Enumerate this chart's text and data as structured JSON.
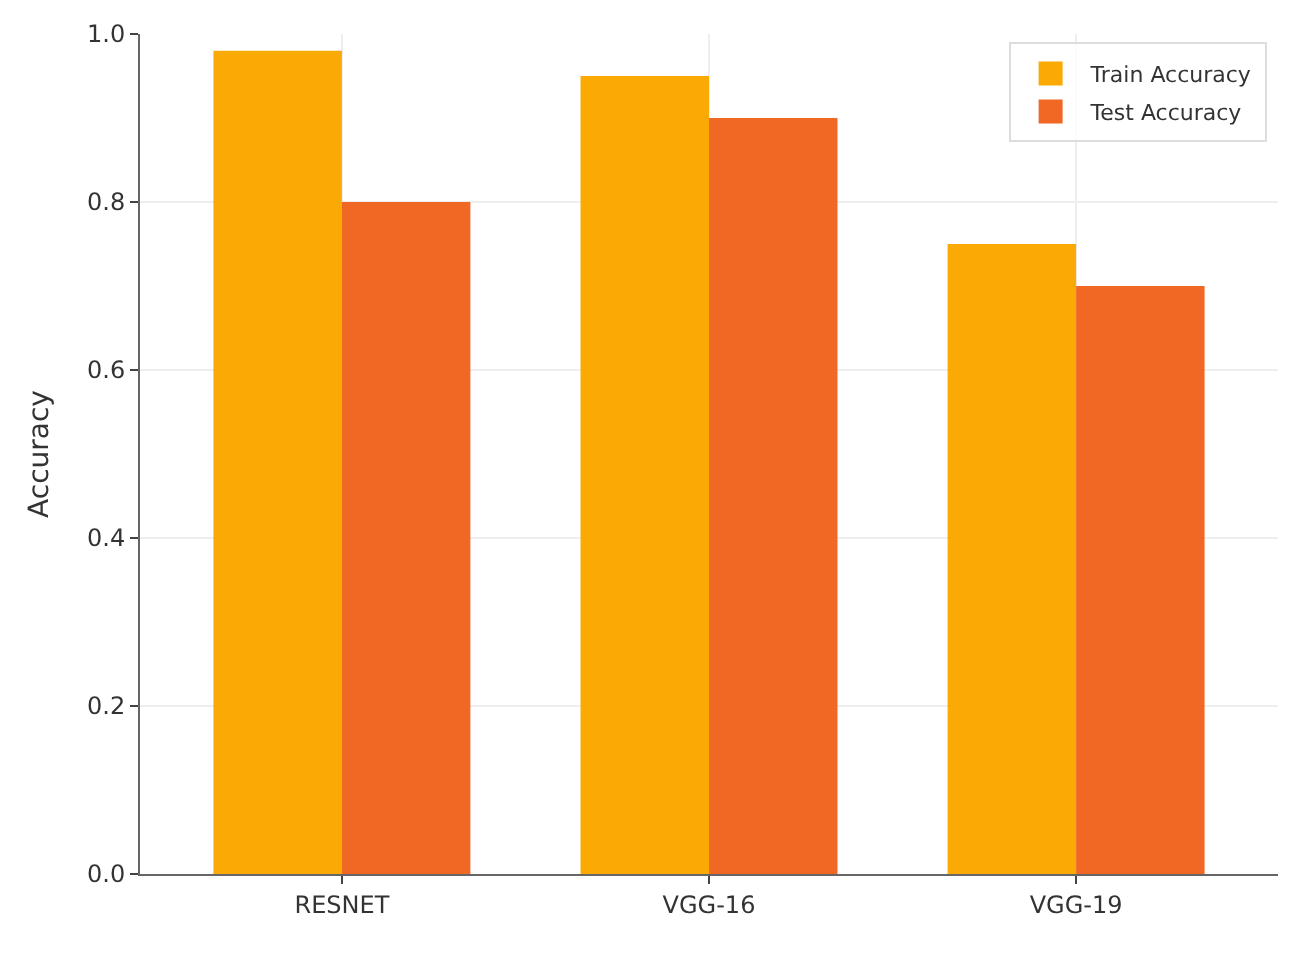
{
  "chart_data": {
    "type": "bar",
    "ylabel": "Accuracy",
    "categories": [
      "RESNET",
      "VGG-16",
      "VGG-19"
    ],
    "series": [
      {
        "name": "Train Accuracy",
        "color": "#fbaa05",
        "values": [
          0.98,
          0.95,
          0.75
        ]
      },
      {
        "name": "Test Accuracy",
        "color": "#f06823",
        "values": [
          0.8,
          0.9,
          0.7
        ]
      }
    ],
    "ylim": [
      0,
      1.0
    ],
    "yticks": [
      {
        "value": 0,
        "label": "0.0"
      },
      0.2,
      0.4,
      0.6,
      0.8,
      {
        "value": 1.0,
        "label": "1.0"
      }
    ],
    "grid": true,
    "legend": "top right"
  }
}
